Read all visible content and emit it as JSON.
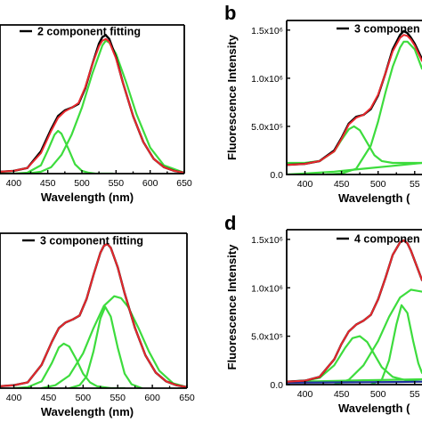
{
  "chart_data": [
    {
      "type": "line",
      "panel_label": "",
      "legend": "2 component fitting",
      "legend_placement": "top-left",
      "xlabel": "Wavelength (nm)",
      "ylabel": "",
      "xlim": [
        380,
        650
      ],
      "ylim": [
        0,
        1.6
      ],
      "xticks": [
        "400",
        "450",
        "500",
        "550",
        "600",
        "650"
      ],
      "yticks": [],
      "experimental": {
        "color": "#000000",
        "x": [
          380,
          400,
          420,
          440,
          455,
          465,
          475,
          485,
          495,
          505,
          515,
          525,
          530,
          535,
          540,
          550,
          560,
          575,
          590,
          605,
          620,
          635,
          650
        ],
        "y": [
          0.02,
          0.03,
          0.06,
          0.24,
          0.48,
          0.62,
          0.68,
          0.71,
          0.75,
          0.92,
          1.17,
          1.4,
          1.47,
          1.49,
          1.45,
          1.25,
          0.98,
          0.62,
          0.34,
          0.16,
          0.07,
          0.03,
          0.01
        ]
      },
      "fit": {
        "color": "#e8282d",
        "x": [
          380,
          400,
          420,
          440,
          455,
          465,
          475,
          485,
          495,
          505,
          515,
          525,
          530,
          535,
          540,
          550,
          560,
          575,
          590,
          605,
          620,
          635,
          650
        ],
        "y": [
          0.02,
          0.03,
          0.06,
          0.22,
          0.46,
          0.6,
          0.67,
          0.71,
          0.76,
          0.93,
          1.17,
          1.37,
          1.43,
          1.45,
          1.42,
          1.24,
          0.98,
          0.62,
          0.34,
          0.16,
          0.07,
          0.03,
          0.01
        ]
      },
      "components": [
        {
          "color": "#3ddc3d",
          "x": [
            380,
            400,
            420,
            440,
            450,
            460,
            465,
            470,
            480,
            490,
            500,
            510,
            520,
            530,
            545
          ],
          "y": [
            0.0,
            0.0,
            0.01,
            0.09,
            0.25,
            0.42,
            0.46,
            0.43,
            0.27,
            0.1,
            0.03,
            0.01,
            0.0,
            0.0,
            0.0
          ]
        },
        {
          "color": "#3ddc3d",
          "x": [
            420,
            440,
            455,
            470,
            485,
            500,
            515,
            530,
            535,
            540,
            550,
            565,
            580,
            600,
            620,
            650
          ],
          "y": [
            0.0,
            0.02,
            0.07,
            0.2,
            0.42,
            0.71,
            1.07,
            1.38,
            1.43,
            1.41,
            1.29,
            0.98,
            0.64,
            0.28,
            0.09,
            0.01
          ]
        }
      ]
    },
    {
      "type": "line",
      "panel_label": "b",
      "legend": "3 componen",
      "legend_placement": "top-right",
      "xlabel": "Wavelength (",
      "ylabel": "Fluorescence Intensity",
      "xlim": [
        375,
        560
      ],
      "ylim": [
        0,
        1600000.0
      ],
      "xticks": [
        "400",
        "450",
        "500",
        "55"
      ],
      "yticks": [
        "0.0",
        "5.0x10⁵",
        "1.0x10⁶",
        "1.5x10⁶"
      ],
      "experimental": {
        "color": "#000000",
        "x": [
          375,
          400,
          420,
          440,
          450,
          460,
          470,
          480,
          490,
          500,
          510,
          520,
          530,
          535,
          540,
          545,
          550,
          560
        ],
        "y": [
          100000.0,
          110000.0,
          140000.0,
          250000.0,
          380000.0,
          530000.0,
          600000.0,
          620000.0,
          680000.0,
          820000.0,
          1050000.0,
          1300000.0,
          1450000.0,
          1490000.0,
          1470000.0,
          1420000.0,
          1360000.0,
          1200000.0
        ]
      },
      "fit": {
        "color": "#e8282d",
        "x": [
          375,
          400,
          420,
          440,
          450,
          460,
          470,
          480,
          490,
          500,
          510,
          520,
          530,
          535,
          540,
          545,
          550,
          560
        ],
        "y": [
          100000.0,
          110000.0,
          140000.0,
          240000.0,
          370000.0,
          520000.0,
          590000.0,
          620000.0,
          690000.0,
          830000.0,
          1050000.0,
          1280000.0,
          1420000.0,
          1450000.0,
          1440000.0,
          1400000.0,
          1340000.0,
          1180000.0
        ]
      },
      "components": [
        {
          "color": "#3ddc3d",
          "x": [
            375,
            400,
            420,
            440,
            450,
            460,
            467,
            475,
            485,
            495,
            505,
            520,
            540,
            560
          ],
          "y": [
            120000.0,
            120000.0,
            140000.0,
            240000.0,
            360000.0,
            470000.0,
            500000.0,
            460000.0,
            330000.0,
            200000.0,
            140000.0,
            120000.0,
            120000.0,
            120000.0
          ]
        },
        {
          "color": "#3ddc3d",
          "x": [
            375,
            400,
            440,
            480,
            520,
            560
          ],
          "y": [
            0.0,
            10000.0,
            30000.0,
            60000.0,
            90000.0,
            120000.0
          ]
        },
        {
          "color": "#3ddc3d",
          "x": [
            430,
            450,
            470,
            490,
            500,
            510,
            520,
            530,
            535,
            540,
            550,
            560
          ],
          "y": [
            0.0,
            10000.0,
            60000.0,
            300000.0,
            550000.0,
            850000.0,
            1120000.0,
            1320000.0,
            1380000.0,
            1380000.0,
            1300000.0,
            1100000.0
          ]
        }
      ]
    },
    {
      "type": "line",
      "panel_label": "",
      "legend": "3 component fitting",
      "legend_placement": "top-left",
      "xlabel": "Wavelength (nm)",
      "ylabel": "",
      "xlim": [
        380,
        650
      ],
      "ylim": [
        0,
        1.6
      ],
      "xticks": [
        "400",
        "450",
        "500",
        "550",
        "600",
        "650"
      ],
      "yticks": [],
      "experimental": {
        "color": "#000000",
        "x": [
          380,
          400,
          420,
          440,
          455,
          465,
          475,
          485,
          495,
          505,
          515,
          525,
          530,
          535,
          540,
          550,
          560,
          575,
          590,
          605,
          620,
          635,
          650
        ],
        "y": [
          0.02,
          0.03,
          0.06,
          0.24,
          0.48,
          0.62,
          0.68,
          0.71,
          0.75,
          0.92,
          1.17,
          1.4,
          1.47,
          1.49,
          1.45,
          1.25,
          0.98,
          0.62,
          0.34,
          0.16,
          0.07,
          0.03,
          0.01
        ]
      },
      "fit": {
        "color": "#e8282d",
        "x": [
          380,
          400,
          420,
          440,
          455,
          465,
          475,
          485,
          495,
          505,
          515,
          525,
          530,
          535,
          540,
          550,
          560,
          575,
          590,
          605,
          620,
          635,
          650
        ],
        "y": [
          0.02,
          0.03,
          0.06,
          0.24,
          0.48,
          0.62,
          0.68,
          0.71,
          0.75,
          0.92,
          1.17,
          1.4,
          1.47,
          1.49,
          1.45,
          1.25,
          0.98,
          0.62,
          0.34,
          0.16,
          0.07,
          0.03,
          0.01
        ]
      },
      "components": [
        {
          "color": "#3ddc3d",
          "x": [
            400,
            420,
            440,
            455,
            465,
            472,
            480,
            490,
            500,
            510,
            520,
            540,
            560
          ],
          "y": [
            0.0,
            0.01,
            0.07,
            0.26,
            0.42,
            0.46,
            0.43,
            0.3,
            0.15,
            0.06,
            0.02,
            0.0,
            0.0
          ]
        },
        {
          "color": "#3ddc3d",
          "x": [
            480,
            495,
            505,
            515,
            525,
            532,
            540,
            550,
            560,
            570,
            585
          ],
          "y": [
            0.0,
            0.03,
            0.12,
            0.38,
            0.72,
            0.84,
            0.74,
            0.42,
            0.15,
            0.04,
            0.0
          ]
        },
        {
          "color": "#3ddc3d",
          "x": [
            440,
            460,
            480,
            500,
            515,
            530,
            545,
            555,
            565,
            580,
            595,
            610,
            630,
            650
          ],
          "y": [
            0.0,
            0.03,
            0.13,
            0.36,
            0.62,
            0.85,
            0.95,
            0.93,
            0.84,
            0.62,
            0.38,
            0.18,
            0.05,
            0.01
          ]
        }
      ]
    },
    {
      "type": "line",
      "panel_label": "d",
      "legend": "4 componen",
      "legend_placement": "top-right",
      "xlabel": "Wavelength (",
      "ylabel": "Fluorescence Intensity",
      "xlim": [
        375,
        560
      ],
      "ylim": [
        0,
        1600000.0
      ],
      "xticks": [
        "400",
        "450",
        "500",
        "55"
      ],
      "yticks": [
        "0.0",
        "5.0x10⁵",
        "1.0x10⁶",
        "1.5x10⁶"
      ],
      "experimental": {
        "color": "#000000",
        "x": [
          375,
          400,
          420,
          440,
          450,
          460,
          470,
          480,
          490,
          500,
          510,
          520,
          530,
          535,
          540,
          545,
          550,
          560
        ],
        "y": [
          30000.0,
          40000.0,
          80000.0,
          260000.0,
          420000.0,
          550000.0,
          620000.0,
          660000.0,
          720000.0,
          880000.0,
          1100000.0,
          1340000.0,
          1470000.0,
          1490000.0,
          1460000.0,
          1380000.0,
          1280000.0,
          1080000.0
        ]
      },
      "fit": {
        "color": "#e8282d",
        "x": [
          375,
          400,
          420,
          440,
          450,
          460,
          470,
          480,
          490,
          500,
          510,
          520,
          530,
          535,
          540,
          545,
          550,
          560
        ],
        "y": [
          30000.0,
          40000.0,
          80000.0,
          260000.0,
          420000.0,
          550000.0,
          620000.0,
          660000.0,
          720000.0,
          880000.0,
          1100000.0,
          1340000.0,
          1470000.0,
          1490000.0,
          1460000.0,
          1380000.0,
          1280000.0,
          1080000.0
        ]
      },
      "components": [
        {
          "color": "#3ddc3d",
          "x": [
            375,
            400,
            420,
            440,
            455,
            465,
            475,
            485,
            495,
            505,
            520,
            540,
            560
          ],
          "y": [
            30000.0,
            40000.0,
            70000.0,
            200000.0,
            380000.0,
            480000.0,
            500000.0,
            440000.0,
            310000.0,
            180000.0,
            80000.0,
            40000.0,
            30000.0
          ]
        },
        {
          "color": "#3ddc3d",
          "x": [
            375,
            420,
            480,
            520,
            560
          ],
          "y": [
            30000.0,
            35000.0,
            45000.0,
            50000.0,
            55000.0
          ]
        },
        {
          "color": "#3ddc3d",
          "x": [
            490,
            505,
            515,
            525,
            532,
            540,
            548,
            555,
            560
          ],
          "y": [
            0.0,
            50000.0,
            250000.0,
            620000.0,
            820000.0,
            740000.0,
            450000.0,
            220000.0,
            120000.0
          ]
        },
        {
          "color": "#3ddc3d",
          "x": [
            440,
            460,
            480,
            500,
            515,
            530,
            545,
            560
          ],
          "y": [
            0.0,
            50000.0,
            200000.0,
            450000.0,
            700000.0,
            900000.0,
            980000.0,
            960000.0
          ]
        },
        {
          "color": "#1c2c9c",
          "x": [
            375,
            420,
            480,
            520,
            560
          ],
          "y": [
            20000.0,
            22000.0,
            25000.0,
            27000.0,
            30000.0
          ]
        }
      ]
    }
  ]
}
